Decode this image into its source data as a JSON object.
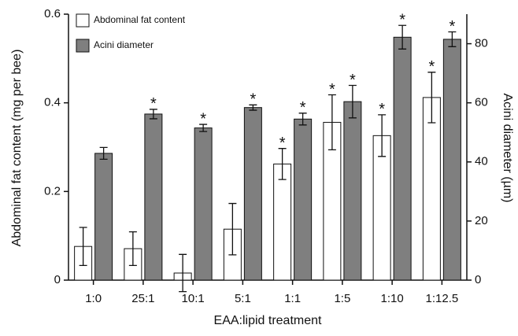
{
  "chart_data": {
    "type": "bar",
    "x_label": "EAA:lipid treatment",
    "y_label": "Abdominal fat content (mg per bee)",
    "y2_label": "Acini diameter (µm)",
    "categories": [
      "1:0",
      "25:1",
      "10:1",
      "5:1",
      "1:1",
      "1:5",
      "1:10",
      "1:12.5"
    ],
    "series": [
      {
        "name": "Abdominal fat content",
        "color": "#ffffff",
        "values": [
          0.076,
          0.071,
          0.016,
          0.115,
          0.262,
          0.356,
          0.326,
          0.412
        ],
        "errors": [
          0.043,
          0.038,
          0.042,
          0.058,
          0.035,
          0.062,
          0.047,
          0.057
        ],
        "significance": [
          null,
          null,
          null,
          null,
          "*",
          "*",
          "*",
          "*"
        ]
      },
      {
        "name": "Acini diameter",
        "color": "#7f7f7f",
        "axis": "y2",
        "values": [
          42.9,
          56.2,
          51.5,
          58.4,
          54.5,
          60.4,
          82.2,
          81.5
        ],
        "errors": [
          2,
          1.6,
          1.2,
          0.9,
          2,
          5.5,
          4,
          2.5
        ],
        "significance": [
          null,
          "*",
          "*",
          "*",
          "*",
          "*",
          "*",
          "*"
        ]
      }
    ],
    "ylim": [
      0,
      0.6
    ],
    "yticks": [
      0,
      0.2,
      0.4,
      0.6
    ],
    "y2lim": [
      0,
      90
    ],
    "y2ticks": [
      0,
      20,
      40,
      60,
      80
    ],
    "legend": "top-left"
  }
}
